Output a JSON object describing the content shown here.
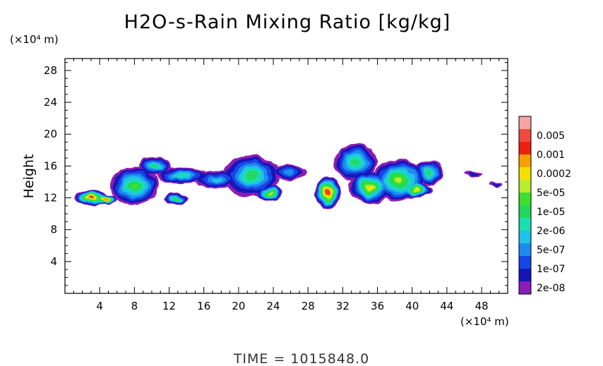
{
  "chart_data": {
    "type": "heatmap",
    "title": "H2O-s-Rain Mixing Ratio [kg/kg]",
    "xunit": "(×10⁴ m)",
    "yunit": "(×10⁴ m)",
    "ylabel": "Height",
    "xlim": [
      0,
      51
    ],
    "ylim": [
      0,
      29.5
    ],
    "x_ticks": [
      "4",
      "8",
      "12",
      "16",
      "20",
      "24",
      "28",
      "32",
      "36",
      "40",
      "44",
      "48"
    ],
    "y_ticks": [
      "4",
      "8",
      "12",
      "16",
      "20",
      "24",
      "28"
    ],
    "footer": "TIME  =  1015848.0",
    "colorbar": {
      "labels": [
        "0.005",
        "0.001",
        "0.0002",
        "5e-05",
        "1e-05",
        "2e-06",
        "5e-07",
        "1e-07",
        "2e-08"
      ],
      "colors": [
        "#f4a6a6",
        "#ee4a3e",
        "#ee2010",
        "#f6a000",
        "#f4e000",
        "#b8ec2c",
        "#3ce02c",
        "#22d85e",
        "#18e0b0",
        "#20c2e8",
        "#1a8cf0",
        "#1646e6",
        "#1414b8",
        "#8c1ab6"
      ]
    },
    "clouds": [
      {
        "x": 3,
        "y": 12,
        "rx": 2.0,
        "ry": 0.9,
        "peak": 11
      },
      {
        "x": 4.7,
        "y": 11.8,
        "rx": 1.3,
        "ry": 0.6,
        "peak": 11
      },
      {
        "x": 8,
        "y": 13.5,
        "rx": 2.8,
        "ry": 2.4,
        "peak": 7
      },
      {
        "x": 10.3,
        "y": 16,
        "rx": 1.8,
        "ry": 1.2,
        "peak": 6
      },
      {
        "x": 12.8,
        "y": 11.8,
        "rx": 1.4,
        "ry": 0.8,
        "peak": 7
      },
      {
        "x": 13.5,
        "y": 14.8,
        "rx": 3.0,
        "ry": 1.0,
        "peak": 5
      },
      {
        "x": 17.5,
        "y": 14.3,
        "rx": 2.6,
        "ry": 1.1,
        "peak": 4
      },
      {
        "x": 21.5,
        "y": 14.8,
        "rx": 3.2,
        "ry": 2.6,
        "peak": 6
      },
      {
        "x": 23.6,
        "y": 12.6,
        "rx": 1.4,
        "ry": 1.0,
        "peak": 8
      },
      {
        "x": 25.8,
        "y": 15.2,
        "rx": 2.0,
        "ry": 0.9,
        "peak": 3
      },
      {
        "x": 30.3,
        "y": 12.6,
        "rx": 1.5,
        "ry": 2.0,
        "peak": 12
      },
      {
        "x": 33.5,
        "y": 16.5,
        "rx": 2.5,
        "ry": 2.2,
        "peak": 6
      },
      {
        "x": 35.2,
        "y": 13.3,
        "rx": 2.4,
        "ry": 2.0,
        "peak": 9
      },
      {
        "x": 38.5,
        "y": 14.2,
        "rx": 3.0,
        "ry": 2.6,
        "peak": 8
      },
      {
        "x": 40.5,
        "y": 13.0,
        "rx": 1.8,
        "ry": 0.9,
        "peak": 9
      },
      {
        "x": 42,
        "y": 15.2,
        "rx": 1.6,
        "ry": 1.6,
        "peak": 6
      },
      {
        "x": 47,
        "y": 15.0,
        "rx": 1.0,
        "ry": 0.35,
        "peak": 1
      },
      {
        "x": 49.7,
        "y": 13.7,
        "rx": 0.7,
        "ry": 0.3,
        "peak": 1
      }
    ]
  }
}
